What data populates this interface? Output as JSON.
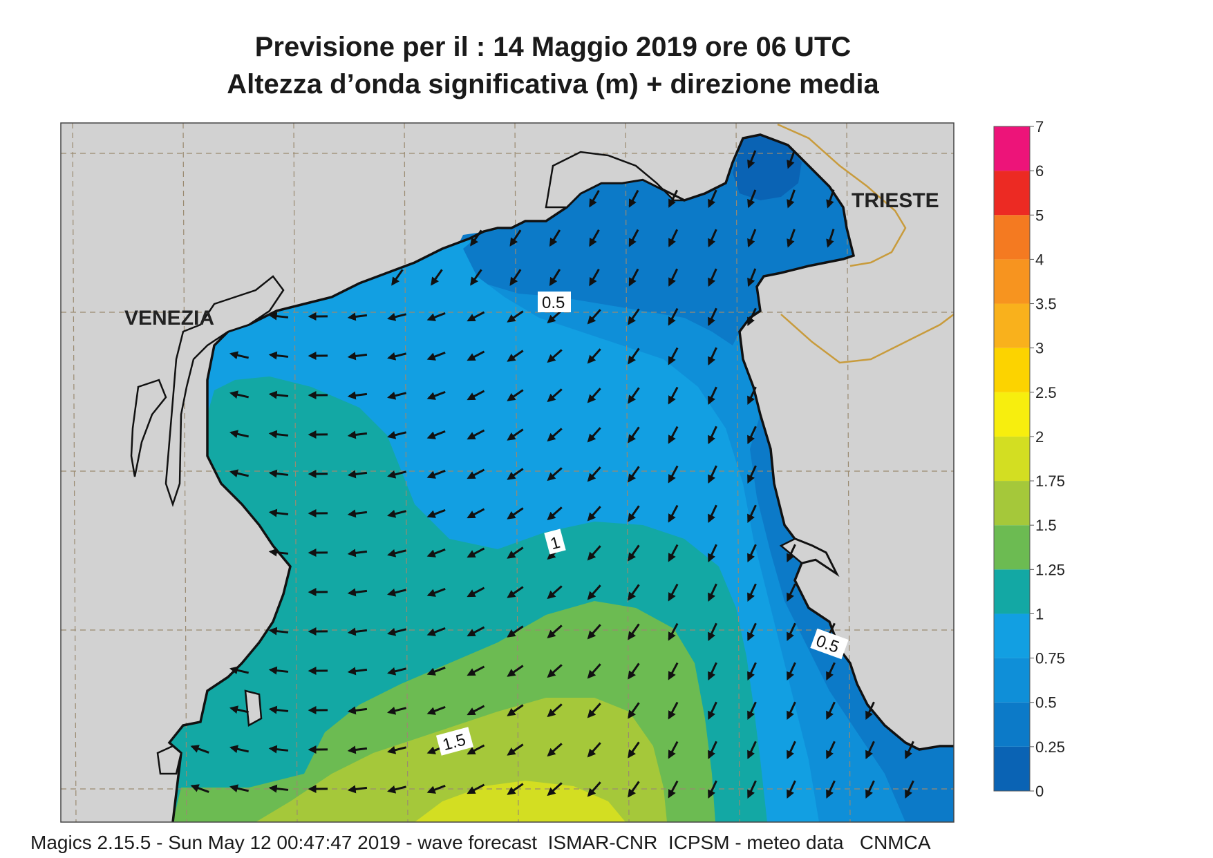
{
  "header": {
    "title_line1": "Previsione per il  :  14   Maggio  2019   ore 06 UTC",
    "title_line2": "Altezza d’onda significativa (m) + direzione media"
  },
  "map": {
    "cities": [
      {
        "name": "VENEZIA"
      },
      {
        "name": "TRIESTE"
      }
    ],
    "contour_labels": [
      {
        "text": "0.5"
      },
      {
        "text": "1"
      },
      {
        "text": "0.5"
      },
      {
        "text": "1.5"
      }
    ],
    "colors": {
      "land": "#d2d2d2",
      "coast": "#111111",
      "border": "#c89b3c",
      "h_0_25": "#0a63b4",
      "h_0_5": "#0c7ac8",
      "h_0_75": "#0f8fd8",
      "h_1": "#129fe2",
      "h_1_25": "#13a8a4",
      "h_1_5": "#6cbb52",
      "h_1_75": "#a5c83a",
      "h_2": "#d3de22"
    }
  },
  "legend": {
    "levels": [
      "0",
      "0.25",
      "0.5",
      "0.75",
      "1",
      "1.25",
      "1.5",
      "1.75",
      "2",
      "2.5",
      "3",
      "3.5",
      "4",
      "5",
      "6",
      "7"
    ],
    "colors": [
      "#0a63b4",
      "#0c7ac8",
      "#0f8fd8",
      "#129fe2",
      "#13a8a4",
      "#6cbb52",
      "#a5c83a",
      "#d3de22",
      "#f7ee0e",
      "#fcd300",
      "#f9b11c",
      "#f7941f",
      "#f47a21",
      "#ec2a23",
      "#ed1479"
    ]
  },
  "footer": {
    "text": "Magics 2.15.5 - Sun May 12 00:47:47 2019 - wave forecast  ISMAR-CNR  ICPSM - meteo data   CNMCA"
  }
}
